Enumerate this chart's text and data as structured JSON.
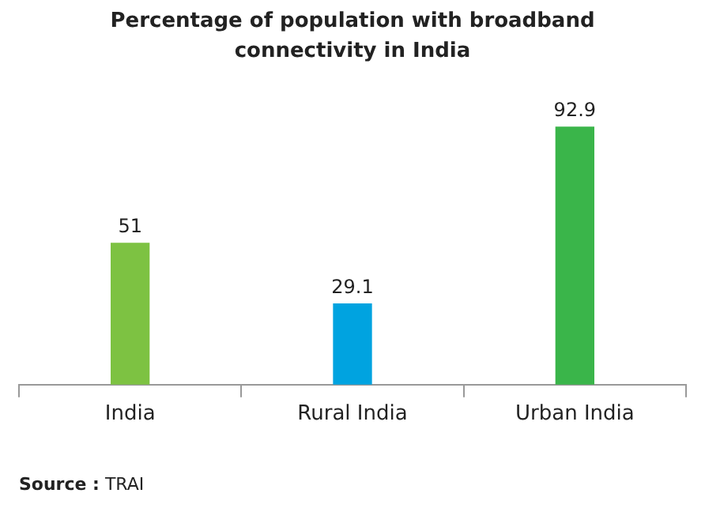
{
  "chart_data": {
    "type": "bar",
    "title": "Percentage of population with broadband connectivity in India",
    "categories": [
      "India",
      "Rural India",
      "Urban India"
    ],
    "values": [
      51,
      29.1,
      92.9
    ],
    "colors": [
      "#7dc242",
      "#00a3e0",
      "#3ab54a"
    ],
    "data_labels": true,
    "grid": false,
    "legend": false,
    "annotations": [
      "Source : TRAI"
    ]
  }
}
